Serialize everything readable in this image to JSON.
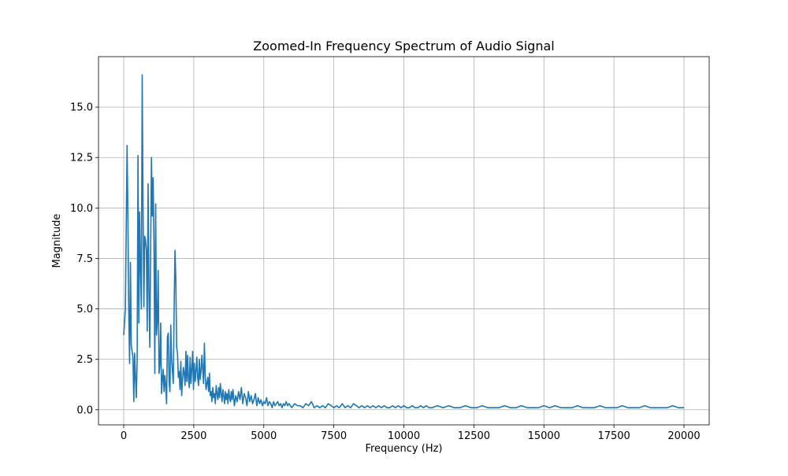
{
  "chart_data": {
    "type": "line",
    "title": "Zoomed-In Frequency Spectrum of Audio Signal",
    "xlabel": "Frequency (Hz)",
    "ylabel": "Magnitude",
    "xlim": [
      -900,
      20900
    ],
    "ylim": [
      -0.75,
      17.5
    ],
    "xticks": [
      0,
      2500,
      5000,
      7500,
      10000,
      12500,
      15000,
      17500,
      20000
    ],
    "xtick_labels": [
      "0",
      "2500",
      "5000",
      "7500",
      "10000",
      "12500",
      "15000",
      "17500",
      "20000"
    ],
    "yticks": [
      0,
      2.5,
      5,
      7.5,
      10,
      12.5,
      15
    ],
    "ytick_labels": [
      "0.0",
      "2.5",
      "5.0",
      "7.5",
      "10.0",
      "12.5",
      "15.0"
    ],
    "grid": true,
    "color": "#1f77b4",
    "series": [
      {
        "x": [
          0,
          60,
          120,
          150,
          180,
          210,
          240,
          270,
          300,
          330,
          360,
          390,
          420,
          450,
          480,
          510,
          540,
          570,
          600,
          630,
          660,
          690,
          720,
          750,
          780,
          810,
          840,
          870,
          900,
          930,
          960,
          990,
          1020,
          1050,
          1080,
          1110,
          1140,
          1170,
          1200,
          1230,
          1260,
          1290,
          1320,
          1350,
          1380,
          1410,
          1440,
          1470,
          1500,
          1530,
          1560,
          1590,
          1620,
          1650,
          1680,
          1710,
          1740,
          1770,
          1800,
          1830,
          1860,
          1890,
          1920,
          1950,
          1980,
          2010,
          2040,
          2070,
          2100,
          2130,
          2160,
          2190,
          2220,
          2250,
          2280,
          2310,
          2340,
          2370,
          2400,
          2430,
          2460,
          2490,
          2520,
          2550,
          2580,
          2610,
          2640,
          2670,
          2700,
          2730,
          2760,
          2790,
          2820,
          2850,
          2880,
          2910,
          2940,
          2970,
          3000,
          3030,
          3060,
          3090,
          3120,
          3150,
          3180,
          3210,
          3240,
          3270,
          3300,
          3330,
          3360,
          3390,
          3420,
          3450,
          3480,
          3510,
          3540,
          3570,
          3600,
          3630,
          3660,
          3690,
          3720,
          3750,
          3780,
          3810,
          3840,
          3870,
          3900,
          3950,
          4000,
          4050,
          4100,
          4150,
          4200,
          4250,
          4300,
          4350,
          4400,
          4450,
          4500,
          4550,
          4600,
          4650,
          4700,
          4750,
          4800,
          4850,
          4900,
          4950,
          5000,
          5050,
          5100,
          5150,
          5200,
          5250,
          5300,
          5350,
          5400,
          5450,
          5500,
          5550,
          5600,
          5650,
          5700,
          5750,
          5800,
          5850,
          5900,
          5950,
          6000,
          6100,
          6200,
          6300,
          6400,
          6500,
          6600,
          6700,
          6800,
          6900,
          7000,
          7100,
          7200,
          7300,
          7400,
          7500,
          7600,
          7700,
          7800,
          7900,
          8000,
          8100,
          8200,
          8300,
          8400,
          8500,
          8600,
          8700,
          8800,
          8900,
          9000,
          9100,
          9200,
          9300,
          9400,
          9500,
          9600,
          9700,
          9800,
          9900,
          10000,
          10100,
          10200,
          10300,
          10400,
          10500,
          10600,
          10700,
          10800,
          10900,
          11000,
          11200,
          11400,
          11600,
          11800,
          12000,
          12200,
          12400,
          12600,
          12800,
          13000,
          13200,
          13400,
          13600,
          13800,
          14000,
          14200,
          14400,
          14600,
          14800,
          15000,
          15200,
          15400,
          15600,
          15800,
          16000,
          16200,
          16400,
          16600,
          16800,
          17000,
          17200,
          17400,
          17600,
          17800,
          18000,
          18200,
          18400,
          18600,
          18800,
          19000,
          19200,
          19400,
          19600,
          19800,
          19900,
          20000
        ],
        "values": [
          3.7,
          5.0,
          13.1,
          9.5,
          4.8,
          2.3,
          7.3,
          3.2,
          2.9,
          2.6,
          0.4,
          2.8,
          1.6,
          0.6,
          2.5,
          12.6,
          4.3,
          9.8,
          6.9,
          5.0,
          16.6,
          10.0,
          5.1,
          8.6,
          8.4,
          7.9,
          3.9,
          11.2,
          6.0,
          3.1,
          7.5,
          12.5,
          9.6,
          11.5,
          8.3,
          1.8,
          10.2,
          3.7,
          4.4,
          6.9,
          1.8,
          2.2,
          4.3,
          0.8,
          1.5,
          2.0,
          0.9,
          1.7,
          1.2,
          0.3,
          3.6,
          3.8,
          1.4,
          0.9,
          4.2,
          2.5,
          1.9,
          1.3,
          5.0,
          7.9,
          6.5,
          3.1,
          2.8,
          1.6,
          1.9,
          1.0,
          2.4,
          0.7,
          1.5,
          2.1,
          1.8,
          1.2,
          2.9,
          1.4,
          2.7,
          1.5,
          1.1,
          2.6,
          1.3,
          2.0,
          2.9,
          1.0,
          2.3,
          1.4,
          1.9,
          2.6,
          1.6,
          1.2,
          2.5,
          1.5,
          1.9,
          2.7,
          2.0,
          1.3,
          3.3,
          1.7,
          1.0,
          1.3,
          1.6,
          0.9,
          1.8,
          0.7,
          0.9,
          0.4,
          1.1,
          0.6,
          0.8,
          0.3,
          1.2,
          0.8,
          0.5,
          1.1,
          0.6,
          1.3,
          0.8,
          0.4,
          1.0,
          0.7,
          0.3,
          0.9,
          0.5,
          0.8,
          0.3,
          1.0,
          0.6,
          0.4,
          0.9,
          0.5,
          1.0,
          0.2,
          0.7,
          0.4,
          0.9,
          0.5,
          1.1,
          0.3,
          0.8,
          0.6,
          0.2,
          0.9,
          0.4,
          0.7,
          0.3,
          0.5,
          0.8,
          0.2,
          0.6,
          0.3,
          0.5,
          0.2,
          0.4,
          0.3,
          0.6,
          0.2,
          0.4,
          0.3,
          0.1,
          0.4,
          0.2,
          0.3,
          0.4,
          0.2,
          0.3,
          0.1,
          0.3,
          0.2,
          0.4,
          0.2,
          0.3,
          0.2,
          0.1,
          0.3,
          0.2,
          0.2,
          0.1,
          0.3,
          0.2,
          0.4,
          0.1,
          0.2,
          0.1,
          0.2,
          0.1,
          0.3,
          0.2,
          0.1,
          0.2,
          0.1,
          0.3,
          0.1,
          0.2,
          0.1,
          0.3,
          0.2,
          0.1,
          0.2,
          0.1,
          0.2,
          0.1,
          0.2,
          0.1,
          0.2,
          0.1,
          0.2,
          0.1,
          0.1,
          0.2,
          0.1,
          0.2,
          0.1,
          0.2,
          0.1,
          0.1,
          0.2,
          0.1,
          0.1,
          0.2,
          0.1,
          0.2,
          0.1,
          0.1,
          0.2,
          0.1,
          0.2,
          0.1,
          0.1,
          0.2,
          0.1,
          0.1,
          0.2,
          0.1,
          0.1,
          0.1,
          0.2,
          0.1,
          0.1,
          0.2,
          0.1,
          0.1,
          0.1,
          0.2,
          0.1,
          0.2,
          0.1,
          0.1,
          0.1,
          0.2,
          0.1,
          0.1,
          0.1,
          0.2,
          0.1,
          0.1,
          0.1,
          0.2,
          0.1,
          0.1,
          0.1,
          0.2,
          0.1,
          0.1,
          0.1,
          0.1,
          0.2,
          0.1,
          0.1,
          0.1
        ]
      }
    ]
  }
}
